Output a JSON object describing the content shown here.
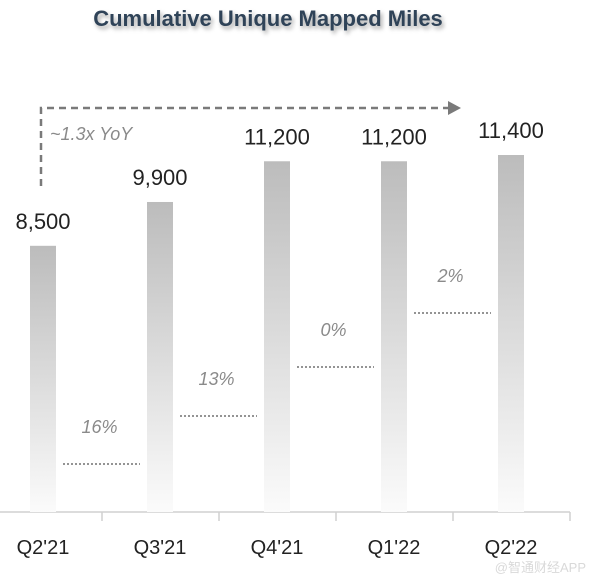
{
  "chart_data": {
    "type": "bar",
    "title": "Cumulative Unique Mapped Miles",
    "categories": [
      "Q2'21",
      "Q3'21",
      "Q4'21",
      "Q1'22",
      "Q2'22"
    ],
    "values": [
      8500,
      9900,
      11200,
      11200,
      11400
    ],
    "value_labels": [
      "8,500",
      "9,900",
      "11,200",
      "11,200",
      "11,400"
    ],
    "growth_labels": [
      "16%",
      "13%",
      "0%",
      "2%"
    ],
    "yoy_annotation": "~1.3x YoY",
    "bar_color": "#bdbdbd",
    "grid": false,
    "legend": "none"
  },
  "watermark": "@智通财经APP"
}
